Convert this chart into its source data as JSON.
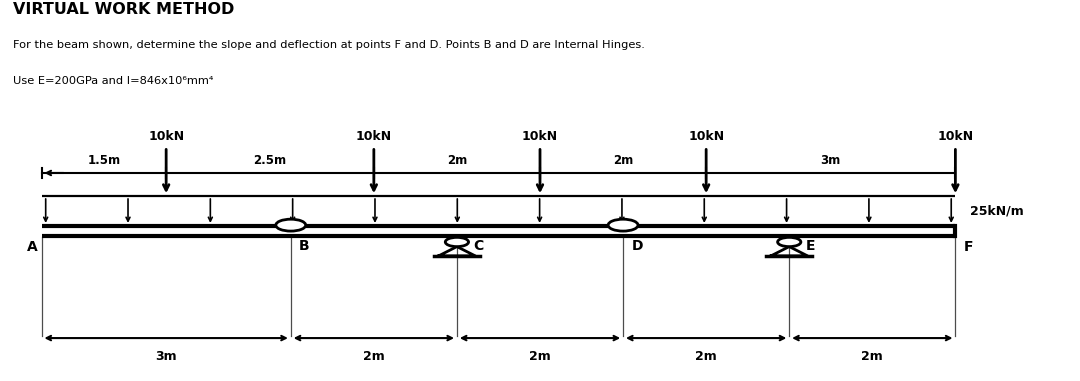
{
  "title": "VIRTUAL WORK METHOD",
  "subtitle1": "For the beam shown, determine the slope and deflection at points F and D. Points B and D are Internal Hinges.",
  "subtitle2": "Use E=200GPa and I=846x10⁶mm⁴",
  "bg_color": "#ffffff",
  "points": [
    "A",
    "B",
    "C",
    "D",
    "E",
    "F"
  ],
  "point_x_m": [
    0,
    3,
    5,
    7,
    9,
    11
  ],
  "load_x_m": [
    1.5,
    4.0,
    6.0,
    8.0,
    11.0
  ],
  "load_labels": [
    "10kN",
    "10kN",
    "10kN",
    "10kN",
    "10kN"
  ],
  "top_dim_pos": [
    0,
    1.5,
    4.0,
    6.0,
    8.0,
    11.0
  ],
  "top_dim_labels": [
    "1.5m",
    "2.5m",
    "2m",
    "2m",
    "3m"
  ],
  "bot_dim_pos": [
    0,
    3,
    5,
    7,
    9,
    11
  ],
  "bot_dim_labels": [
    "3m",
    "2m",
    "2m",
    "2m",
    "2m"
  ],
  "udl_label": "25kN/m",
  "pin_supports": [
    5,
    9
  ],
  "internal_hinges": [
    3,
    7
  ]
}
